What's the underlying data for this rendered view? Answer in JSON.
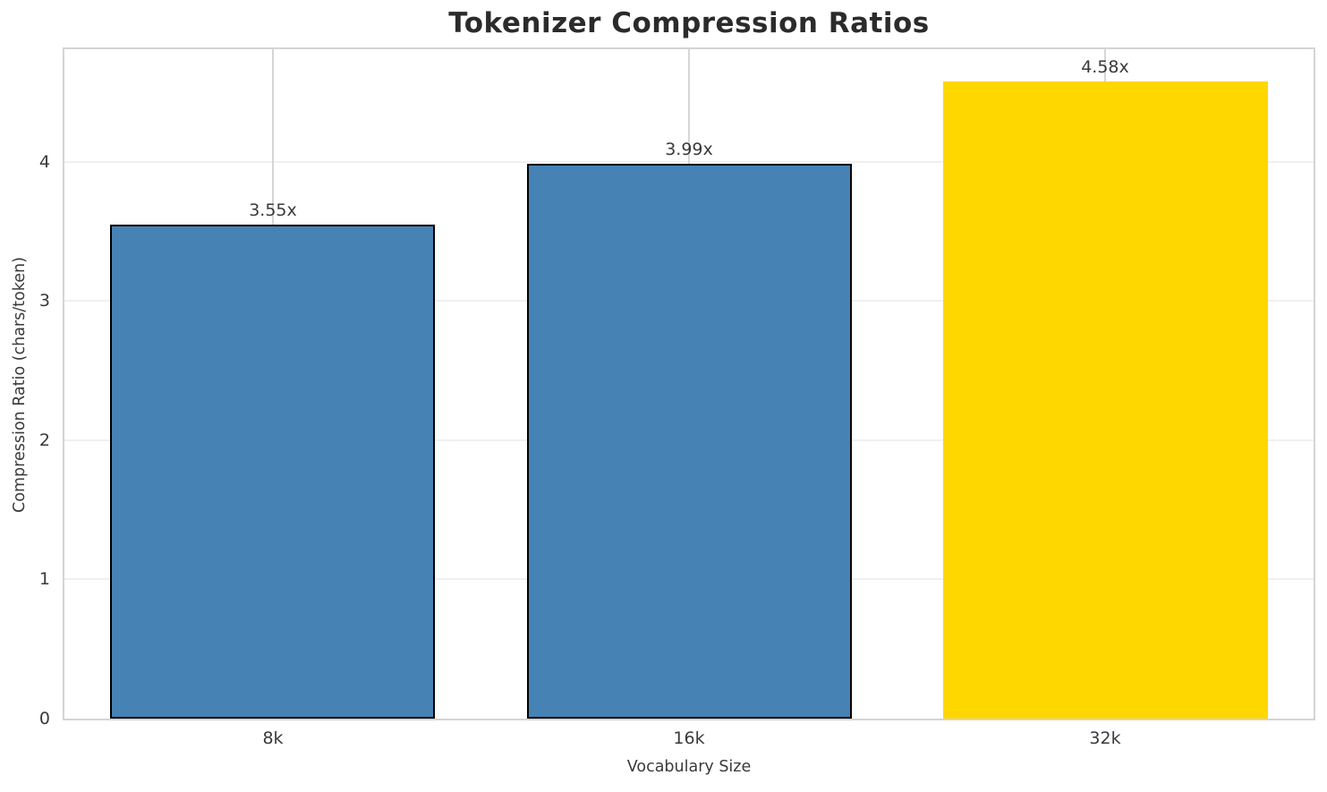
{
  "chart_data": {
    "type": "bar",
    "title": "Tokenizer Compression Ratios",
    "xlabel": "Vocabulary Size",
    "ylabel": "Compression Ratio (chars/token)",
    "categories": [
      "8k",
      "16k",
      "32k"
    ],
    "values": [
      3.55,
      3.99,
      4.58
    ],
    "value_labels": [
      "3.55x",
      "3.99x",
      "4.58x"
    ],
    "yticks": [
      0,
      1,
      2,
      3,
      4
    ],
    "ylim": [
      0,
      4.81
    ],
    "grid": "both",
    "legend": "none",
    "bar_colors": [
      "#4682B4",
      "#4682B4",
      "#FFD700"
    ],
    "bar_edge_colors": [
      "#000000",
      "#000000",
      "none"
    ]
  },
  "colors": {
    "background": "#FFFFFF",
    "title_text": "#2B2B2B",
    "axis_text": "#3A3A3A",
    "spine": "#D4D4D4",
    "grid_horizontal": "#F0F0F0",
    "grid_vertical": "#D6D6D6",
    "bar_blue": "#4682B4",
    "bar_gold": "#FFD700",
    "bar_edge": "#000000"
  }
}
